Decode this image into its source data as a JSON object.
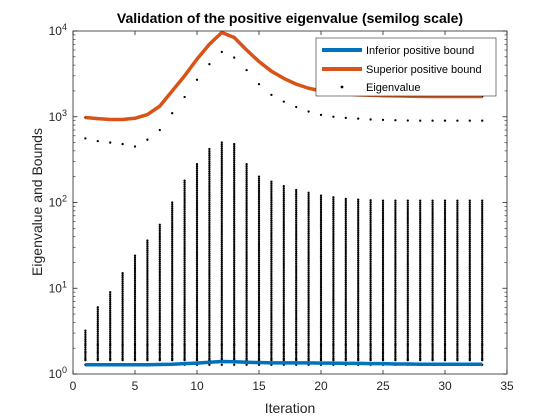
{
  "chart_data": {
    "type": "scatter",
    "title": "Validation of the positive eigenvalue (semilog scale)",
    "xlabel": "Iteration",
    "ylabel": "Eigenvalue and Bounds",
    "xlim": [
      0,
      35
    ],
    "ylim": [
      1,
      10000
    ],
    "yscale": "log",
    "grid": false,
    "legend_position": "top-right",
    "xticks": [
      0,
      5,
      10,
      15,
      20,
      25,
      30,
      35
    ],
    "yticks": [
      {
        "base": "10",
        "exp": "0",
        "value": 1
      },
      {
        "base": "10",
        "exp": "1",
        "value": 10
      },
      {
        "base": "10",
        "exp": "2",
        "value": 100
      },
      {
        "base": "10",
        "exp": "3",
        "value": 1000
      },
      {
        "base": "10",
        "exp": "4",
        "value": 10000
      }
    ],
    "series": [
      {
        "name": "Inferior positive bound",
        "style": "line",
        "color": "#0072BD",
        "x": [
          1,
          2,
          3,
          4,
          5,
          6,
          7,
          8,
          9,
          10,
          11,
          12,
          13,
          14,
          15,
          16,
          17,
          18,
          19,
          20,
          21,
          22,
          23,
          24,
          25,
          26,
          27,
          28,
          29,
          30,
          31,
          32,
          33
        ],
        "y": [
          1.28,
          1.28,
          1.28,
          1.28,
          1.28,
          1.28,
          1.29,
          1.3,
          1.32,
          1.34,
          1.37,
          1.4,
          1.39,
          1.37,
          1.36,
          1.35,
          1.35,
          1.35,
          1.35,
          1.34,
          1.34,
          1.33,
          1.33,
          1.32,
          1.32,
          1.31,
          1.31,
          1.3,
          1.3,
          1.3,
          1.3,
          1.3,
          1.3
        ]
      },
      {
        "name": "Superior positive bound",
        "style": "line",
        "color": "#D95319",
        "x": [
          1,
          2,
          3,
          4,
          5,
          6,
          7,
          8,
          9,
          10,
          11,
          12,
          13,
          14,
          15,
          16,
          17,
          18,
          19,
          20,
          21,
          22,
          23,
          24,
          25,
          26,
          27,
          28,
          29,
          30,
          31,
          32,
          33
        ],
        "y": [
          980,
          950,
          930,
          930,
          960,
          1060,
          1330,
          2000,
          3000,
          4700,
          7000,
          9600,
          8400,
          6000,
          4400,
          3400,
          2800,
          2400,
          2150,
          2000,
          1900,
          1850,
          1800,
          1780,
          1760,
          1750,
          1740,
          1730,
          1720,
          1720,
          1720,
          1720,
          1720
        ]
      },
      {
        "name": "Eigenvalue",
        "style": "markers",
        "color": "#000000",
        "x": [
          1,
          2,
          3,
          4,
          5,
          6,
          7,
          8,
          9,
          10,
          11,
          12,
          13,
          14,
          15,
          16,
          17,
          18,
          19,
          20,
          21,
          22,
          23,
          24,
          25,
          26,
          27,
          28,
          29,
          30,
          31,
          32,
          33
        ],
        "max": [
          3.2,
          6,
          9,
          15,
          24,
          36,
          55,
          100,
          180,
          280,
          420,
          500,
          480,
          280,
          200,
          175,
          155,
          140,
          130,
          120,
          115,
          110,
          108,
          106,
          105,
          105,
          105,
          105,
          105,
          105,
          105,
          105,
          105
        ],
        "top": [
          560,
          520,
          500,
          480,
          450,
          540,
          700,
          1100,
          1700,
          2700,
          4100,
          5700,
          4900,
          3500,
          2400,
          1800,
          1500,
          1300,
          1150,
          1050,
          1000,
          970,
          950,
          930,
          920,
          910,
          905,
          900,
          900,
          900,
          900,
          900,
          900
        ]
      }
    ]
  }
}
